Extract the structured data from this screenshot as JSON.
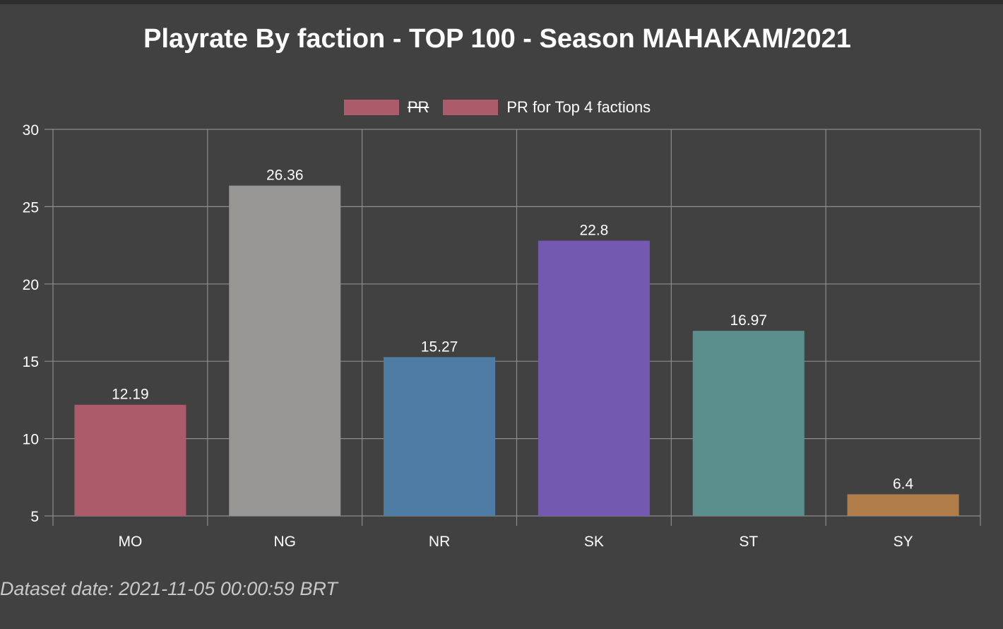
{
  "chart_data": {
    "type": "bar",
    "title": "Playrate By faction - TOP 100 - Season MAHAKAM/2021",
    "categories": [
      "MO",
      "NG",
      "NR",
      "SK",
      "ST",
      "SY"
    ],
    "values": [
      12.19,
      26.36,
      15.27,
      22.8,
      16.97,
      6.4
    ],
    "colors": [
      "#ab5b6a",
      "#979695",
      "#4e7ca4",
      "#735ab0",
      "#5a8f8d",
      "#b07d4b"
    ],
    "legend": [
      {
        "label": "PR",
        "color": "#ab5b6a",
        "hidden": true
      },
      {
        "label": "PR for Top 4 factions",
        "color": "#ab5b6a",
        "hidden": false
      }
    ],
    "legend_position": "top-center",
    "ylim": [
      5,
      30
    ],
    "yticks": [
      5,
      10,
      15,
      20,
      25,
      30
    ],
    "grid": true,
    "xlabel": "",
    "ylabel": ""
  },
  "footer": {
    "dataset_date": "Dataset date: 2021-11-05 00:00:59 BRT"
  },
  "theme": {
    "background": "#414141",
    "grid": "#8c8c8c",
    "text": "#ffffff"
  }
}
